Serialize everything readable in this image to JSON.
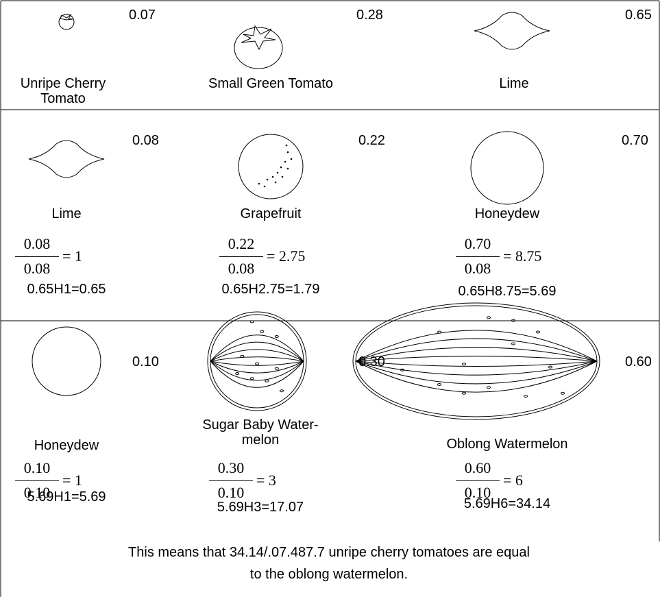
{
  "rows": [
    {
      "cells": [
        {
          "value": "0.07",
          "name": [
            "Unripe Cherry",
            "Tomato"
          ]
        },
        {
          "value": "0.28",
          "name": [
            "Small Green Tomato"
          ]
        },
        {
          "value": "0.65",
          "name": [
            "Lime"
          ]
        }
      ]
    },
    {
      "cells": [
        {
          "value": "0.08",
          "name": [
            "Lime"
          ],
          "fraction": {
            "numerator": "0.08",
            "denominator": "0.08",
            "result": "= 1"
          },
          "product": "0.65H1=0.65"
        },
        {
          "value": "0.22",
          "name": [
            "Grapefruit"
          ],
          "fraction": {
            "numerator": "0.22",
            "denominator": "0.08",
            "result": "= 2.75"
          },
          "product": "0.65H2.75=1.79"
        },
        {
          "value": "0.70",
          "name": [
            "Honeydew"
          ],
          "fraction": {
            "numerator": "0.70",
            "denominator": "0.08",
            "result": "= 8.75"
          },
          "product": "0.65H8.75=5.69"
        }
      ]
    },
    {
      "cells": [
        {
          "value": "0.10",
          "name": [
            "Honeydew"
          ],
          "fraction": {
            "numerator": "0.10",
            "denominator": "0.10",
            "result": "= 1"
          },
          "product": "5.69H1=5.69"
        },
        {
          "value": "0.30",
          "name": [
            "Sugar Baby Water-",
            "melon"
          ],
          "fraction": {
            "numerator": "0.30",
            "denominator": "0.10",
            "result": "= 3"
          },
          "product": "5.69H3=17.07"
        },
        {
          "value": "0.60",
          "name": [
            "Oblong Watermelon"
          ],
          "fraction": {
            "numerator": "0.60",
            "denominator": "0.10",
            "result": "= 6"
          },
          "product": "5.69H6=34.14"
        }
      ]
    }
  ],
  "footer": [
    "This means that 34.14/.07.487.7 unripe cherry tomatoes are equal",
    "to the oblong watermelon."
  ]
}
